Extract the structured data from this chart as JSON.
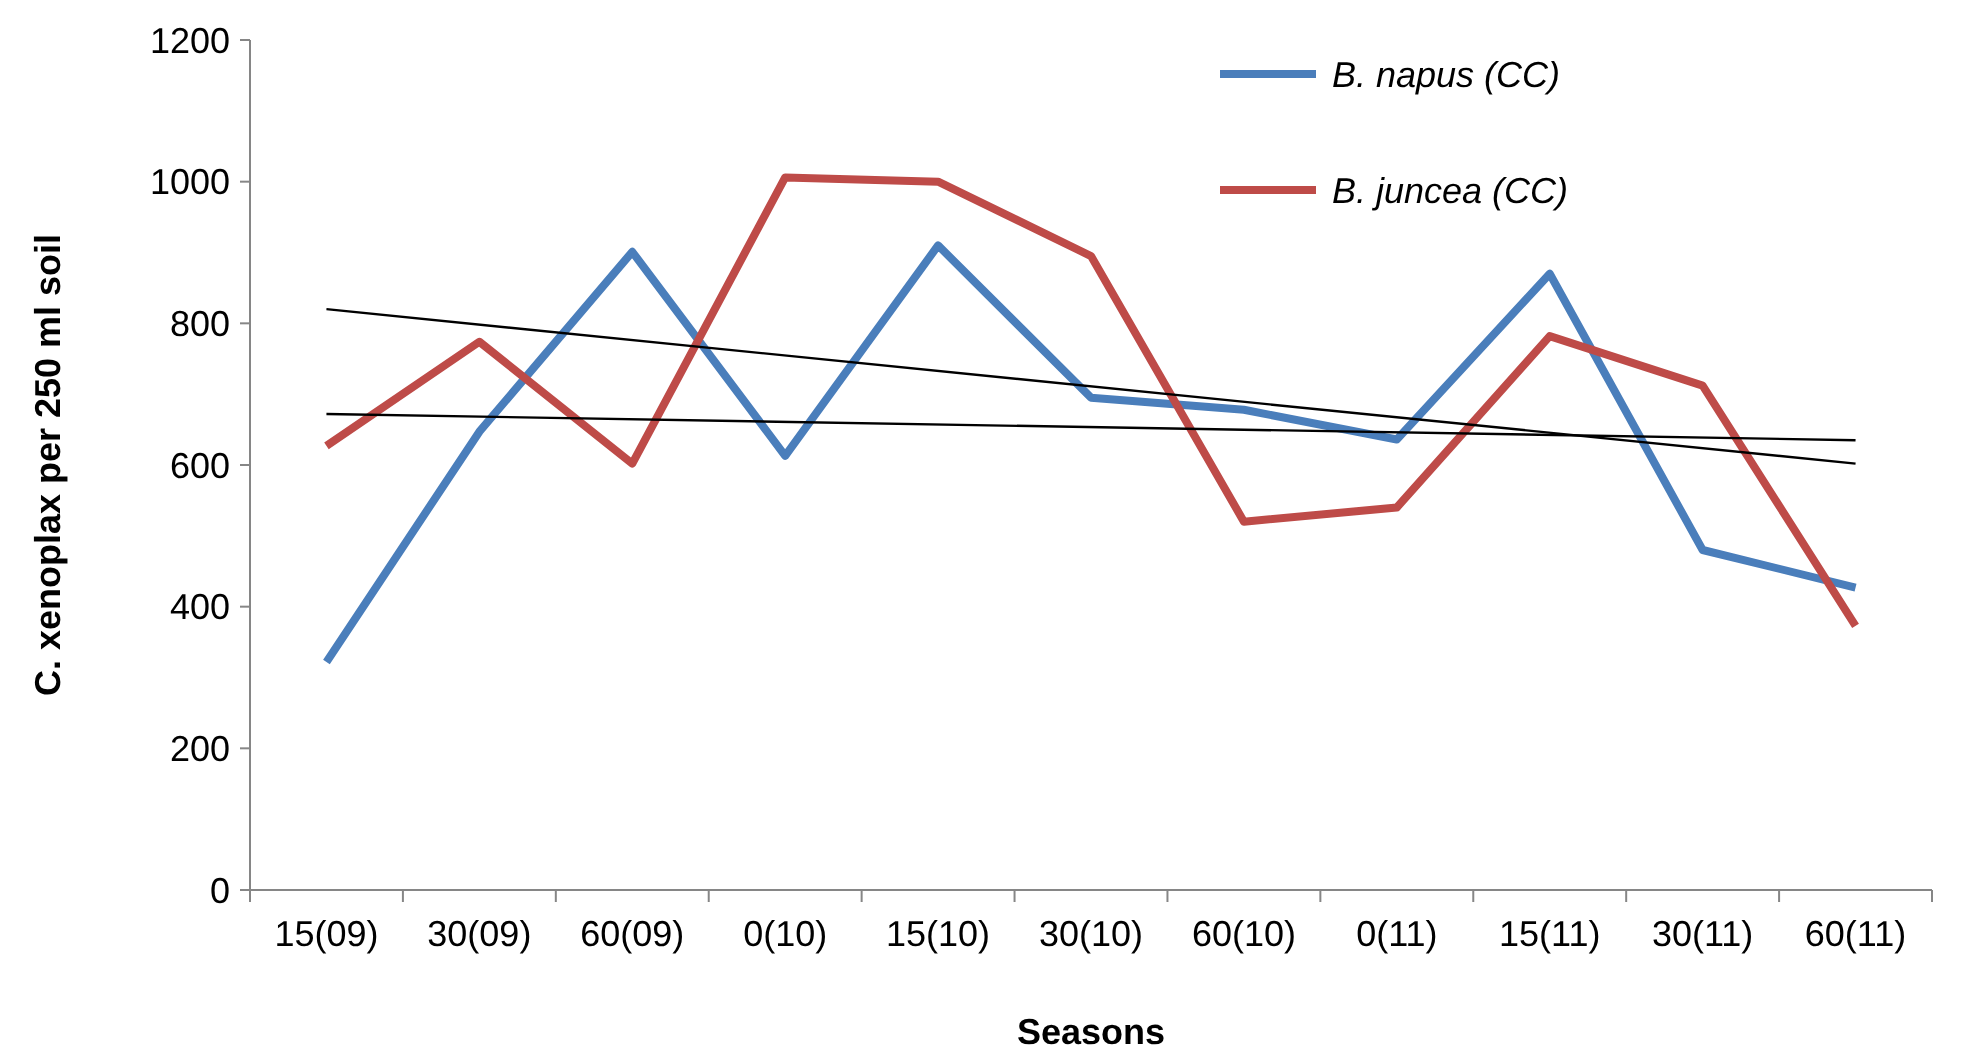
{
  "chart_data": {
    "type": "line",
    "xlabel": "Seasons",
    "ylabel": "C. xenoplax per 250 ml soil",
    "categories": [
      "15(09)",
      "30(09)",
      "60(09)",
      "0(10)",
      "15(10)",
      "30(10)",
      "60(10)",
      "0(11)",
      "15(11)",
      "30(11)",
      "60(11)"
    ],
    "series": [
      {
        "name": "B. napus (CC)",
        "color": "#4a7ebb",
        "values": [
          322,
          647,
          901,
          613,
          910,
          695,
          678,
          636,
          870,
          480,
          427
        ]
      },
      {
        "name": "B. juncea (CC)",
        "color": "#be4b48",
        "values": [
          627,
          774,
          602,
          1006,
          1000,
          895,
          520,
          540,
          782,
          712,
          373
        ]
      },
      {
        "color": "#000000",
        "x": [
          "15(09)",
          "60(11)"
        ],
        "values": [
          672,
          635
        ]
      },
      {
        "color": "#000000",
        "x": [
          "15(09)",
          "60(11)"
        ],
        "values": [
          820,
          602
        ]
      }
    ],
    "ylim": [
      0,
      1200
    ],
    "yticks": [
      0,
      200,
      400,
      600,
      800,
      1000,
      1200
    ],
    "grid": false,
    "legend": "top right",
    "marker": "none",
    "line_style": "solid"
  }
}
